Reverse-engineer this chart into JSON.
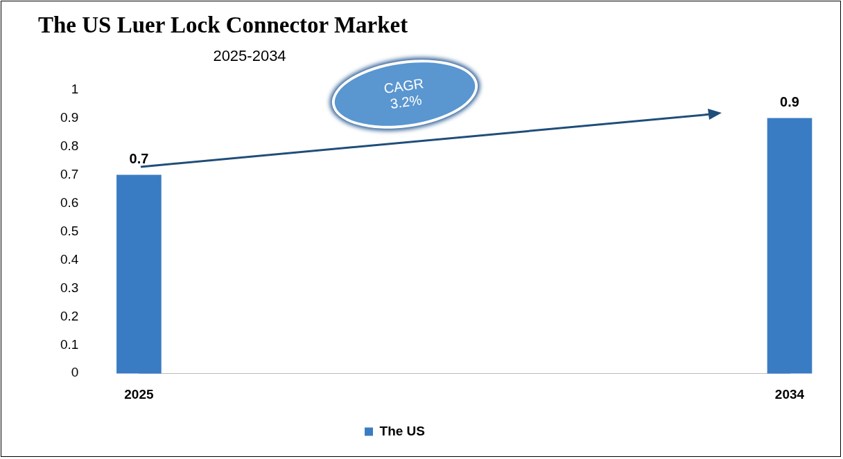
{
  "chart_data": {
    "type": "bar",
    "title": "The US Luer Lock Connector Market",
    "subtitle": "2025-2034",
    "categories": [
      "2025",
      "2034"
    ],
    "series": [
      {
        "name": "The US",
        "color": "#3a7cc3",
        "values": [
          0.7,
          0.9
        ]
      }
    ],
    "ylim": [
      0,
      1
    ],
    "yticks": [
      0,
      0.1,
      0.2,
      0.3,
      0.4,
      0.5,
      0.6,
      0.7,
      0.8,
      0.9,
      1
    ],
    "grid": false,
    "legend": "bottom",
    "data_labels": true,
    "annotations": [
      "CAGR\n3.2%"
    ]
  }
}
